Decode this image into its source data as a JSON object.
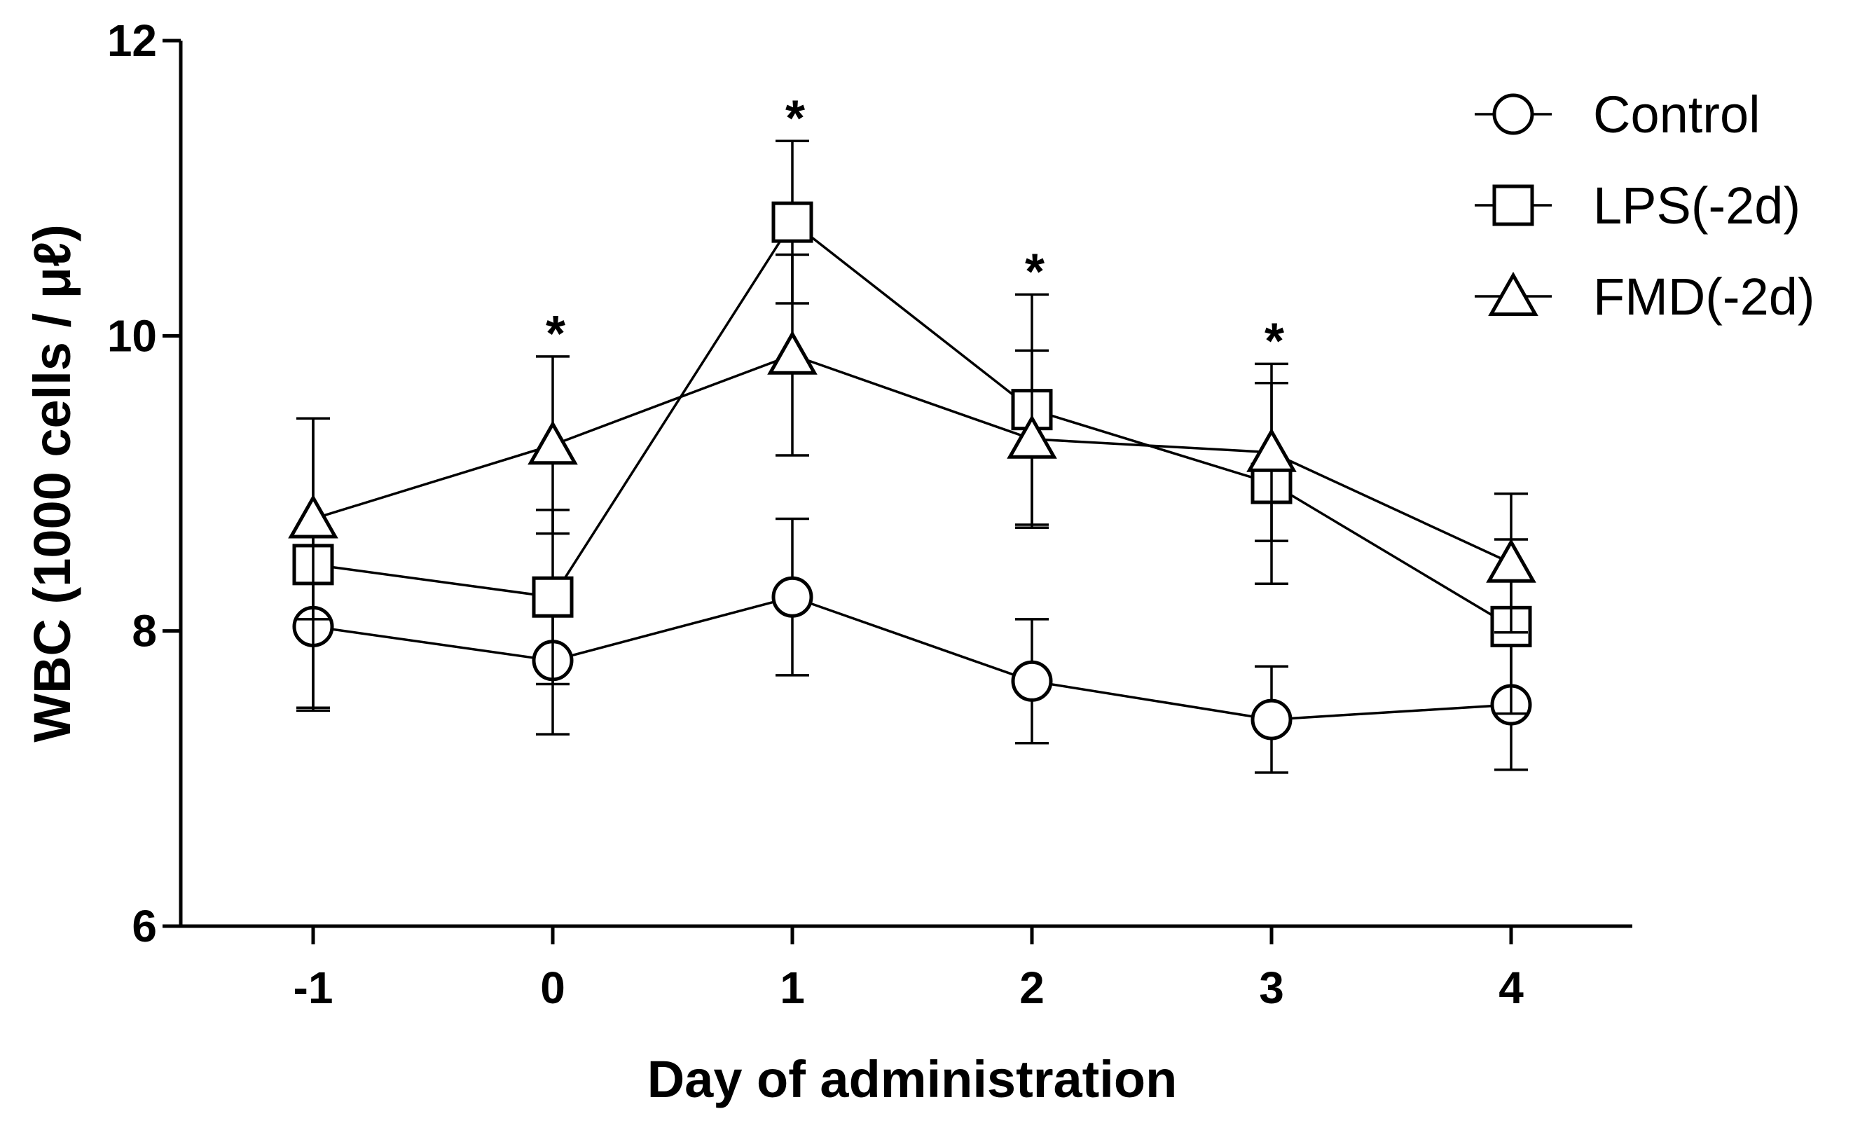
{
  "chart_data": {
    "type": "line",
    "title": "",
    "xlabel": "Day of administration",
    "ylabel": "WBC (1000 cells / μℓ)",
    "ylim": [
      6,
      12
    ],
    "yticks": [
      6,
      8,
      10,
      12
    ],
    "categories": [
      "-1",
      "0",
      "1",
      "2",
      "3",
      "4"
    ],
    "series": [
      {
        "name": "Control",
        "marker": "circle",
        "values": [
          8.03,
          7.8,
          8.23,
          7.66,
          7.4,
          7.5
        ],
        "errors": [
          0.55,
          0.5,
          0.53,
          0.42,
          0.36,
          0.44
        ]
      },
      {
        "name": "LPS(-2d)",
        "marker": "square",
        "values": [
          8.45,
          8.23,
          10.77,
          9.5,
          9.0,
          8.03
        ],
        "errors": [
          0.99,
          0.59,
          0.55,
          0.78,
          0.68,
          0.59
        ]
      },
      {
        "name": "FMD(-2d)",
        "marker": "triangle",
        "values": [
          8.76,
          9.26,
          9.87,
          9.3,
          9.21,
          8.46
        ],
        "errors": [
          0.68,
          0.6,
          0.68,
          0.6,
          0.6,
          0.47
        ]
      }
    ],
    "significance": [
      "",
      "*",
      "*",
      "*",
      "*",
      ""
    ],
    "legend_position": "top-right",
    "grid": false
  }
}
